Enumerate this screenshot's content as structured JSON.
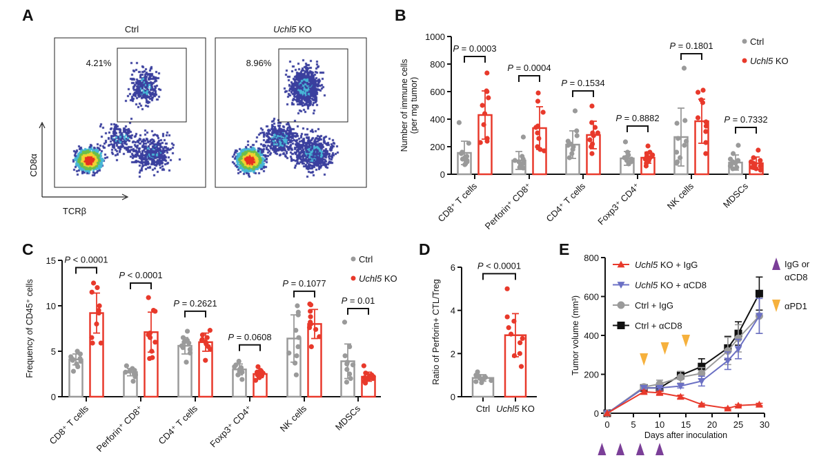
{
  "panels": {
    "A": "A",
    "B": "B",
    "C": "C",
    "D": "D",
    "E": "E"
  },
  "colors": {
    "ctrl": "#9a9a9a",
    "ko": "#e8392b",
    "ko_acd8": "#6b70c4",
    "ctrl_acd8": "#111111",
    "purple": "#7b3f98",
    "orange": "#f6b13d"
  },
  "panel_a": {
    "plots": [
      {
        "title": "Ctrl",
        "gate_percent": "4.21%"
      },
      {
        "title_gene": "Uchl5",
        "title_suffix": " KO",
        "gate_percent": "8.96%"
      }
    ],
    "y_axis": "CD8α",
    "x_axis": "TCRβ"
  },
  "legend": {
    "ctrl": "Ctrl",
    "ko_gene": "Uchl5",
    "ko_suffix": " KO"
  },
  "chart_data": [
    {
      "id": "B",
      "type": "bar",
      "ylabel": [
        "Number of immune cells",
        "(per mg tumor)"
      ],
      "ylim": [
        0,
        1000
      ],
      "yticks": [
        0,
        200,
        400,
        600,
        800,
        1000
      ],
      "legend": "top-right",
      "categories": [
        "CD8⁺ T cells",
        "Perforin⁺ CD8⁺",
        "CD4⁺ T cells",
        "Foxp3⁺ CD4⁺",
        "NK cells",
        "MDSCs"
      ],
      "series": [
        {
          "name": "Ctrl",
          "mean": [
            155,
            100,
            215,
            115,
            270,
            85
          ],
          "sd": [
            85,
            65,
            100,
            50,
            210,
            55
          ],
          "points": [
            [
              375,
              225,
              160,
              150,
              130,
              120,
              110,
              100,
              90,
              70
            ],
            [
              270,
              130,
              100,
              90,
              80,
              70,
              60,
              50,
              45,
              110
            ],
            [
              460,
              315,
              240,
              220,
              200,
              180,
              150,
              120,
              280,
              210
            ],
            [
              235,
              160,
              140,
              120,
              110,
              100,
              90,
              80,
              75,
              130
            ],
            [
              770,
              390,
              370,
              210,
              160,
              120,
              90,
              80,
              240,
              260
            ],
            [
              210,
              150,
              110,
              90,
              70,
              60,
              50,
              40,
              100,
              80
            ]
          ]
        },
        {
          "name": "Uchl5 KO",
          "mean": [
            430,
            335,
            285,
            120,
            385,
            80
          ],
          "sd": [
            175,
            155,
            100,
            40,
            160,
            45
          ],
          "points": [
            [
              735,
              605,
              555,
              500,
              360,
              260,
              240,
              230,
              600,
              440
            ],
            [
              590,
              530,
              450,
              350,
              340,
              300,
              260,
              200,
              170,
              180
            ],
            [
              495,
              375,
              340,
              300,
              280,
              250,
              220,
              200,
              150,
              300
            ],
            [
              205,
              160,
              140,
              130,
              120,
              110,
              100,
              80,
              60,
              150
            ],
            [
              610,
              595,
              540,
              520,
              410,
              350,
              310,
              230,
              150,
              380
            ],
            [
              175,
              120,
              100,
              80,
              70,
              60,
              50,
              40,
              90,
              30
            ]
          ]
        }
      ],
      "p_values": [
        "= 0.0003",
        "= 0.0004",
        "= 0.1534",
        "= 0.8882",
        "= 0.1801",
        "= 0.7332"
      ],
      "bracket_levels": [
        855,
        715,
        605,
        350,
        875,
        340
      ]
    },
    {
      "id": "C",
      "type": "bar",
      "ylabel": [
        "Frequency of CD45⁺ cells"
      ],
      "ylim": [
        0,
        15
      ],
      "yticks": [
        0,
        5,
        10,
        15
      ],
      "legend": "top-right",
      "categories": [
        "CD8⁺ T cells",
        "Perforin⁺ CD8⁺",
        "CD4⁺ T cells",
        "Foxp3⁺ CD4⁺",
        "NK cells",
        "MDSCs"
      ],
      "series": [
        {
          "name": "Ctrl",
          "mean": [
            4.1,
            2.7,
            5.6,
            3.0,
            6.4,
            3.9
          ],
          "sd": [
            0.6,
            0.4,
            0.9,
            0.6,
            2.6,
            1.9
          ],
          "points": [
            [
              5.0,
              4.7,
              4.4,
              4.2,
              4.0,
              3.9,
              3.6,
              3.3,
              2.8,
              4.1
            ],
            [
              3.4,
              3.1,
              2.9,
              2.7,
              2.6,
              2.5,
              2.4,
              2.2,
              1.7,
              2.8
            ],
            [
              7.2,
              6.5,
              6.2,
              6.0,
              5.6,
              5.4,
              5.2,
              4.8,
              3.8,
              5.9
            ],
            [
              3.9,
              3.5,
              3.2,
              3.0,
              2.9,
              2.8,
              2.7,
              2.4,
              1.9,
              3.3
            ],
            [
              10.0,
              9.3,
              9.0,
              7.3,
              6.5,
              4.8,
              4.5,
              3.7,
              2.4,
              5.5
            ],
            [
              8.2,
              5.5,
              4.5,
              3.8,
              3.5,
              3.0,
              2.5,
              2.0,
              1.6,
              3.6
            ]
          ]
        },
        {
          "name": "Uchl5 KO",
          "mean": [
            9.2,
            7.1,
            6.0,
            2.5,
            8.0,
            2.2
          ],
          "sd": [
            2.2,
            2.2,
            1.0,
            0.4,
            1.6,
            0.5
          ],
          "points": [
            [
              12.5,
              12.0,
              11.5,
              10.0,
              9.5,
              9.2,
              8.0,
              6.5,
              5.9,
              5.9
            ],
            [
              10.9,
              9.5,
              9.4,
              7.0,
              6.8,
              6.5,
              6.0,
              5.0,
              4.2,
              4.3
            ],
            [
              7.3,
              6.8,
              6.5,
              6.2,
              6.0,
              5.8,
              5.5,
              5.2,
              4.0,
              6.3
            ],
            [
              3.3,
              2.9,
              2.7,
              2.6,
              2.5,
              2.4,
              2.3,
              2.1,
              1.8,
              2.6
            ],
            [
              10.2,
              10.1,
              9.4,
              8.8,
              8.2,
              7.6,
              7.4,
              6.6,
              5.5,
              8.0
            ],
            [
              3.4,
              2.6,
              2.4,
              2.2,
              2.1,
              2.0,
              1.9,
              1.7,
              1.5,
              2.3
            ]
          ]
        }
      ],
      "p_values": [
        "< 0.0001",
        "< 0.0001",
        "= 0.2621",
        "= 0.0608",
        "= 0.1077",
        "= 0.01"
      ],
      "bracket_levels": [
        14.2,
        12.5,
        9.4,
        5.7,
        11.6,
        9.7
      ]
    },
    {
      "id": "D",
      "type": "bar",
      "ylabel": [
        "Ratio of Perforin+ CTL/Treg"
      ],
      "ylim": [
        0,
        6
      ],
      "yticks": [
        0,
        2,
        4,
        6
      ],
      "categories": [
        "Ctrl",
        "Uchl5 KO"
      ],
      "series": [
        {
          "name": "Ctrl",
          "mean": [
            0.87
          ],
          "sd": [
            0.15
          ],
          "points": [
            [
              1.15,
              1.0,
              0.95,
              0.9,
              0.85,
              0.8,
              0.75,
              0.7,
              0.65,
              0.85
            ]
          ]
        },
        {
          "name": "Uchl5 KO",
          "mean": [
            2.85
          ],
          "sd": [
            1.0
          ],
          "points": [
            [
              5.0,
              3.7,
              3.5,
              3.2,
              2.9,
              2.7,
              2.5,
              2.0,
              1.9,
              1.4
            ]
          ]
        }
      ],
      "p_values": [
        "< 0.0001"
      ],
      "bracket_levels": [
        5.7
      ]
    },
    {
      "id": "E",
      "type": "line",
      "xlabel": "Days after inoculation",
      "ylabel": "Tumor volume (mm³)",
      "xlim": [
        0,
        30
      ],
      "ylim": [
        0,
        800
      ],
      "xticks": [
        0,
        5,
        10,
        15,
        20,
        25,
        30
      ],
      "yticks": [
        0,
        200,
        400,
        600,
        800
      ],
      "x": [
        0,
        7,
        10,
        14,
        18,
        23,
        25,
        29
      ],
      "series": [
        {
          "name_gene": "Uchl5",
          "name": " KO + IgG",
          "marker": "triangle-up",
          "color": "#e8392b",
          "y": [
            0,
            110,
            105,
            85,
            45,
            25,
            40,
            45
          ],
          "err": [
            0,
            8,
            8,
            8,
            6,
            5,
            5,
            6
          ]
        },
        {
          "name_gene": "Uchl5",
          "name": " KO + αCD8",
          "marker": "triangle-down",
          "color": "#6b70c4",
          "y": [
            0,
            130,
            130,
            140,
            165,
            270,
            330,
            500
          ],
          "err": [
            0,
            10,
            10,
            10,
            25,
            45,
            50,
            90
          ]
        },
        {
          "name_gene": "",
          "name": "Ctrl + IgG",
          "marker": "circle",
          "color": "#9a9a9a",
          "y": [
            0,
            135,
            150,
            185,
            205,
            320,
            385,
            500
          ],
          "err": [
            0,
            10,
            20,
            30,
            30,
            70,
            70,
            90
          ]
        },
        {
          "name_gene": "",
          "name": "Ctrl + αCD8",
          "marker": "square",
          "color": "#111111",
          "y": [
            0,
            130,
            130,
            195,
            240,
            335,
            410,
            615
          ],
          "err": [
            0,
            10,
            15,
            20,
            40,
            60,
            60,
            85
          ]
        }
      ],
      "treatments": [
        {
          "label_lines": [
            "IgG or",
            "αCD8"
          ],
          "color": "#7b3f98",
          "days": [
            -1,
            2.5,
            6.3,
            10
          ]
        },
        {
          "label_lines": [
            "αPD1"
          ],
          "color": "#f6b13d",
          "days": [
            7,
            11,
            15
          ]
        }
      ]
    }
  ]
}
